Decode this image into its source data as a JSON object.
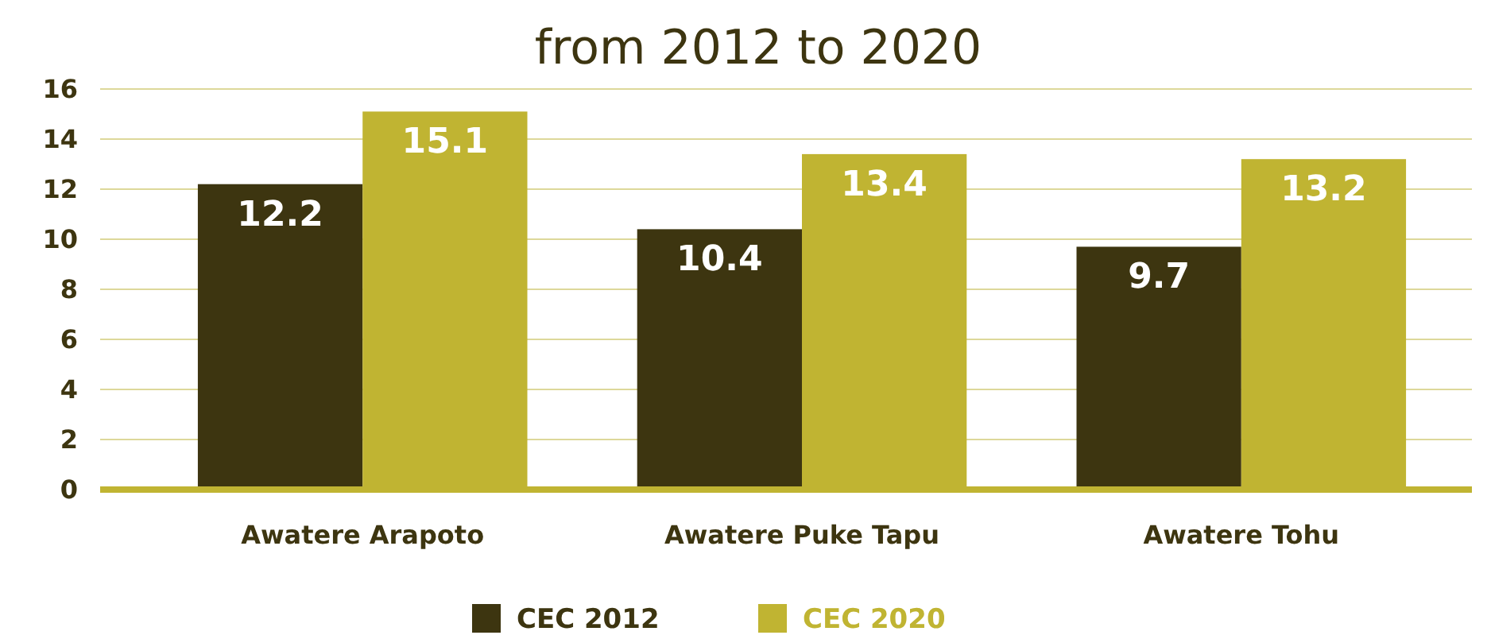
{
  "chart_data": {
    "type": "bar",
    "title": "from 2012 to 2020",
    "categories": [
      "Awatere Arapoto",
      "Awatere Puke Tapu",
      "Awatere Tohu"
    ],
    "series": [
      {
        "name": "CEC 2012",
        "color": "#3d3510",
        "values": [
          12.2,
          10.4,
          9.7
        ]
      },
      {
        "name": "CEC 2020",
        "color": "#c0b432",
        "values": [
          15.1,
          13.4,
          13.2
        ]
      }
    ],
    "ylim": [
      0,
      16
    ],
    "yticks": [
      0,
      2,
      4,
      6,
      8,
      10,
      12,
      14,
      16
    ],
    "grid": "y",
    "legend": "bottom",
    "data_labels": true
  }
}
